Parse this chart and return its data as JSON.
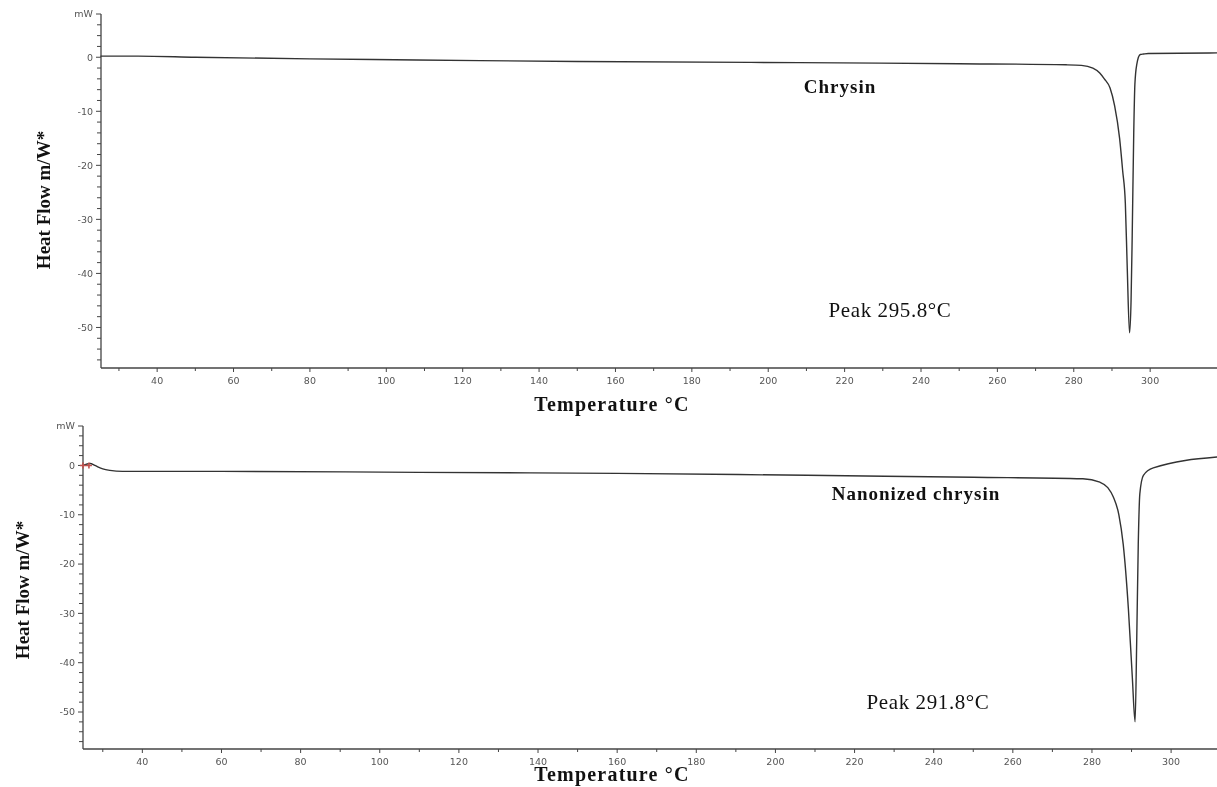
{
  "chart_data": [
    {
      "type": "line",
      "xlabel": "Temperature °C",
      "ylabel": "Heat Flow m/W*",
      "annotations": [
        "Peak 295.8°C"
      ],
      "xlim": [
        25.3,
        317.5
      ],
      "ylim": [
        -57.5,
        8
      ],
      "xticks": [
        {
          "value": 30,
          "label": null
        },
        40,
        {
          "value": 50,
          "label": null
        },
        60,
        {
          "value": 70,
          "label": null
        },
        80,
        {
          "value": 90,
          "label": null
        },
        100,
        {
          "value": 110,
          "label": null
        },
        120,
        {
          "value": 130,
          "label": null
        },
        140,
        {
          "value": 150,
          "label": null
        },
        160,
        {
          "value": 170,
          "label": null
        },
        180,
        {
          "value": 190,
          "label": null
        },
        200,
        {
          "value": 210,
          "label": null
        },
        220,
        {
          "value": 230,
          "label": null
        },
        240,
        {
          "value": 250,
          "label": null
        },
        260,
        {
          "value": 270,
          "label": null
        },
        280,
        {
          "value": 290,
          "label": null
        },
        300
      ],
      "yticks": [
        {
          "value": 8,
          "label": "mW"
        },
        {
          "value": 6,
          "label": null
        },
        {
          "value": 4,
          "label": null
        },
        {
          "value": 2,
          "label": null
        },
        0,
        {
          "value": -2,
          "label": null
        },
        {
          "value": -4,
          "label": null
        },
        {
          "value": -6,
          "label": null
        },
        {
          "value": -8,
          "label": null
        },
        -10,
        {
          "value": -12,
          "label": null
        },
        {
          "value": -14,
          "label": null
        },
        {
          "value": -16,
          "label": null
        },
        {
          "value": -18,
          "label": null
        },
        -20,
        {
          "value": -22,
          "label": null
        },
        {
          "value": -24,
          "label": null
        },
        {
          "value": -26,
          "label": null
        },
        {
          "value": -28,
          "label": null
        },
        -30,
        {
          "value": -32,
          "label": null
        },
        {
          "value": -34,
          "label": null
        },
        {
          "value": -36,
          "label": null
        },
        {
          "value": -38,
          "label": null
        },
        -40,
        {
          "value": -42,
          "label": null
        },
        {
          "value": -44,
          "label": null
        },
        {
          "value": -46,
          "label": null
        },
        {
          "value": -48,
          "label": null
        },
        -50,
        {
          "value": -52,
          "label": null
        },
        {
          "value": -54,
          "label": null
        },
        {
          "value": -56,
          "label": null
        }
      ],
      "series": [
        {
          "name": "Chrysin",
          "type": "line",
          "color": "#333333",
          "x": [
            25.3,
            35,
            50,
            80,
            108,
            150,
            208,
            250,
            278,
            282,
            285,
            286.8,
            288,
            289.5,
            290.7,
            292,
            292.8,
            293.5,
            294,
            294.6,
            295,
            295.3,
            295.7,
            296,
            296.5,
            297.4,
            298.3,
            299.5,
            317.5
          ],
          "values": [
            0.2,
            0.2,
            0,
            -0.3,
            -0.5,
            -0.8,
            -1,
            -1.2,
            -1.4,
            -1.5,
            -2,
            -2.9,
            -4,
            -5.7,
            -9,
            -15,
            -21,
            -27,
            -39,
            -51,
            -45,
            -33,
            -14,
            -5,
            -1.3,
            0.5,
            0.6,
            0.7,
            0.8
          ]
        }
      ]
    },
    {
      "type": "line",
      "xlabel": "Temperature °C",
      "ylabel": "Heat Flow m/W*",
      "annotations": [
        "Peak 291.8°C"
      ],
      "xlim": [
        25,
        311.6
      ],
      "ylim": [
        -57.5,
        8
      ],
      "xticks": [
        {
          "value": 30,
          "label": null
        },
        40,
        {
          "value": 50,
          "label": null
        },
        60,
        {
          "value": 70,
          "label": null
        },
        80,
        {
          "value": 90,
          "label": null
        },
        100,
        {
          "value": 110,
          "label": null
        },
        120,
        {
          "value": 130,
          "label": null
        },
        140,
        {
          "value": 150,
          "label": null
        },
        160,
        {
          "value": 170,
          "label": null
        },
        180,
        {
          "value": 190,
          "label": null
        },
        200,
        {
          "value": 210,
          "label": null
        },
        220,
        {
          "value": 230,
          "label": null
        },
        240,
        {
          "value": 250,
          "label": null
        },
        260,
        {
          "value": 270,
          "label": null
        },
        280,
        {
          "value": 290,
          "label": null
        },
        300
      ],
      "yticks": [
        {
          "value": 8,
          "label": "mW"
        },
        {
          "value": 6,
          "label": null
        },
        {
          "value": 4,
          "label": null
        },
        {
          "value": 2,
          "label": null
        },
        0,
        {
          "value": -2,
          "label": null
        },
        {
          "value": -4,
          "label": null
        },
        {
          "value": -6,
          "label": null
        },
        {
          "value": -8,
          "label": null
        },
        -10,
        {
          "value": -12,
          "label": null
        },
        {
          "value": -14,
          "label": null
        },
        {
          "value": -16,
          "label": null
        },
        {
          "value": -18,
          "label": null
        },
        -20,
        {
          "value": -22,
          "label": null
        },
        {
          "value": -24,
          "label": null
        },
        {
          "value": -26,
          "label": null
        },
        {
          "value": -28,
          "label": null
        },
        -30,
        {
          "value": -32,
          "label": null
        },
        {
          "value": -34,
          "label": null
        },
        {
          "value": -36,
          "label": null
        },
        {
          "value": -38,
          "label": null
        },
        -40,
        {
          "value": -42,
          "label": null
        },
        {
          "value": -44,
          "label": null
        },
        {
          "value": -46,
          "label": null
        },
        {
          "value": -48,
          "label": null
        },
        -50,
        {
          "value": -52,
          "label": null
        },
        {
          "value": -54,
          "label": null
        },
        {
          "value": -56,
          "label": null
        }
      ],
      "series": [
        {
          "name": "Nanonized chrysin",
          "type": "line",
          "color": "#333333",
          "x": [
            25,
            26.8,
            28,
            30,
            31.8,
            35,
            60,
            110,
            160,
            208,
            250,
            277.7,
            282,
            284,
            285.4,
            286.8,
            287.9,
            289.2,
            290.2,
            290.9,
            291.3,
            291.7,
            292.1,
            293,
            295.5,
            311.6
          ],
          "values": [
            0,
            0.4,
            0,
            -0.7,
            -1,
            -1.2,
            -1.2,
            -1.4,
            -1.6,
            -2,
            -2.4,
            -2.7,
            -3.4,
            -4.5,
            -6.4,
            -10,
            -16,
            -29,
            -43,
            -52,
            -36,
            -16,
            -5.7,
            -2,
            -0.5,
            1.7
          ]
        },
        {
          "type": "scatter",
          "marker": "cross",
          "color": "#c0504d",
          "x": [
            25,
            26.5
          ],
          "values": [
            0,
            0
          ]
        }
      ]
    }
  ]
}
